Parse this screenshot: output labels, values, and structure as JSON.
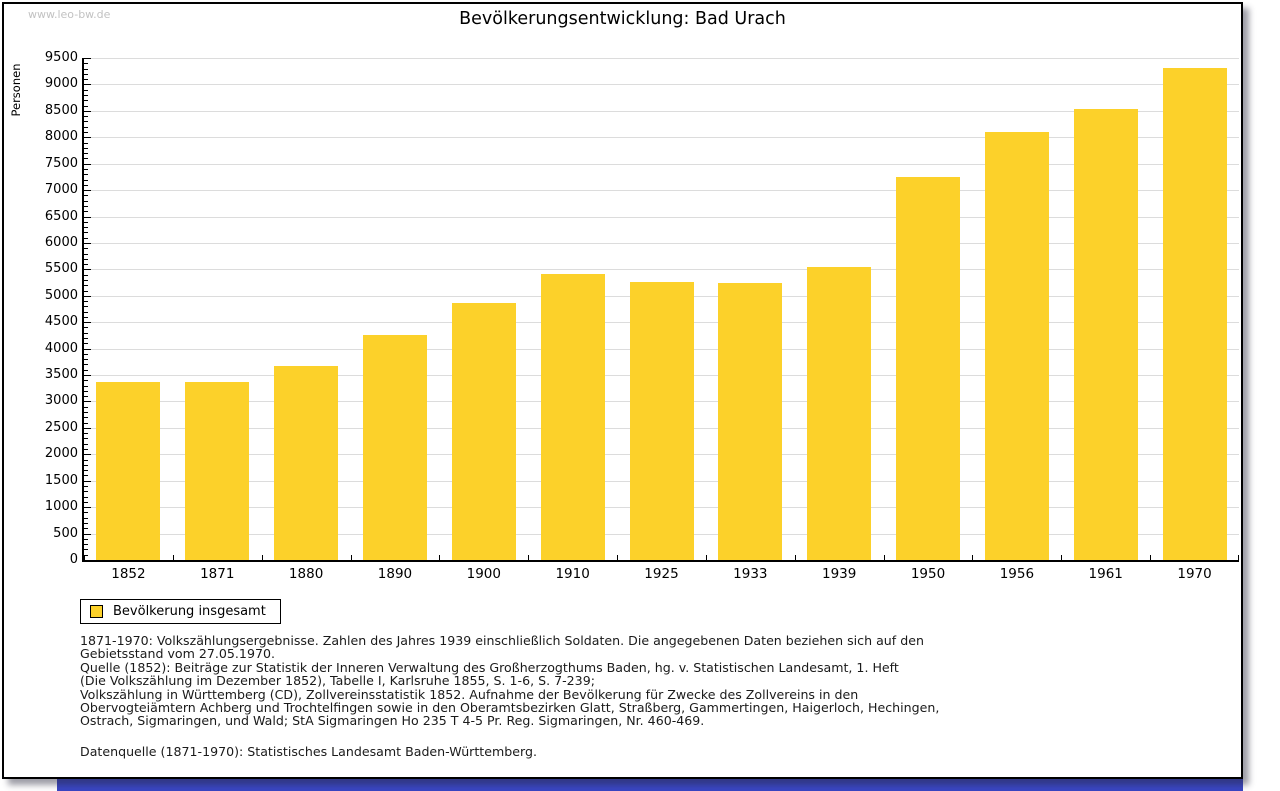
{
  "watermark": "www.leo-bw.de",
  "chart_data": {
    "type": "bar",
    "title": "Bevölkerungsentwicklung: Bad Urach",
    "xlabel": "",
    "ylabel": "Personen",
    "ylim": [
      0,
      9500
    ],
    "ytick_step": 500,
    "minor_tick_step": 100,
    "grid": true,
    "legend_position": "bottom-left",
    "bar_color": "#FCD12A",
    "categories": [
      "1852",
      "1871",
      "1880",
      "1890",
      "1900",
      "1910",
      "1925",
      "1933",
      "1939",
      "1950",
      "1956",
      "1961",
      "1970"
    ],
    "values": [
      3370,
      3370,
      3680,
      4250,
      4870,
      5420,
      5260,
      5250,
      5540,
      7250,
      8100,
      8540,
      9310
    ],
    "yticks": [
      0,
      500,
      1000,
      1500,
      2000,
      2500,
      3000,
      3500,
      4000,
      4500,
      5000,
      5500,
      6000,
      6500,
      7000,
      7500,
      8000,
      8500,
      9000,
      9500
    ],
    "legend": [
      {
        "label": "Bevölkerung insgesamt",
        "color": "#FCD12A"
      }
    ]
  },
  "footer": {
    "notes": [
      "1871-1970: Volkszählungsergebnisse. Zahlen des Jahres 1939 einschließlich Soldaten. Die angegebenen Daten beziehen sich auf den",
      "Gebietsstand vom 27.05.1970.",
      "Quelle (1852): Beiträge zur Statistik der Inneren Verwaltung des Großherzogthums Baden, hg. v. Statistischen Landesamt, 1. Heft",
      "(Die Volkszählung im Dezember 1852), Tabelle I, Karlsruhe 1855, S. 1-6, S. 7-239;",
      "Volkszählung in Württemberg (CD), Zollvereinsstatistik 1852. Aufnahme der Bevölkerung für Zwecke des Zollvereins in den",
      "Obervogteiämtern Achberg und Trochtelfingen sowie in den Oberamtsbezirken Glatt, Straßberg, Gammertingen, Haigerloch, Hechingen,",
      "Ostrach, Sigmaringen, und Wald; StA Sigmaringen Ho 235 T 4-5 Pr. Reg. Sigmaringen, Nr. 460-469."
    ],
    "source": "Datenquelle (1871-1970): Statistisches Landesamt Baden-Württemberg."
  },
  "colors": {
    "bar": "#FCD12A",
    "gridline": "#DCDCDC",
    "watermark": "#C2C2C2",
    "site_footer_strip": "#3A46C3"
  }
}
